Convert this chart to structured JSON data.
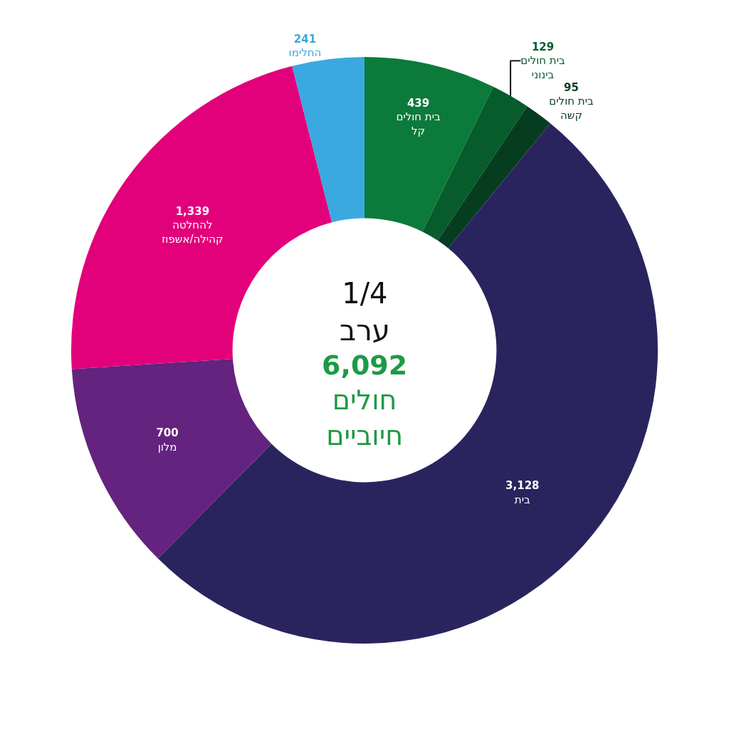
{
  "chart_data": {
    "type": "donut",
    "categories": [
      "בית חולים\nקל",
      "בית חולים\nבינוני",
      "בית חולים\nקשה",
      "בית",
      "מלון",
      "להחלטה\nקהילה/אשפוז",
      "החלימו"
    ],
    "values": [
      439,
      129,
      95,
      3128,
      700,
      1339,
      241
    ],
    "value_labels": [
      "439",
      "129",
      "95",
      "3,128",
      "700",
      "1,339",
      "241"
    ],
    "colors": [
      "#0b7a3b",
      "#075c2c",
      "#063d21",
      "#2a245e",
      "#63237e",
      "#e2007b",
      "#3aa9e0"
    ],
    "annotations": [
      "1/4\nערב",
      "6,092\nחולים\nחיוביים"
    ],
    "legend": false
  }
}
